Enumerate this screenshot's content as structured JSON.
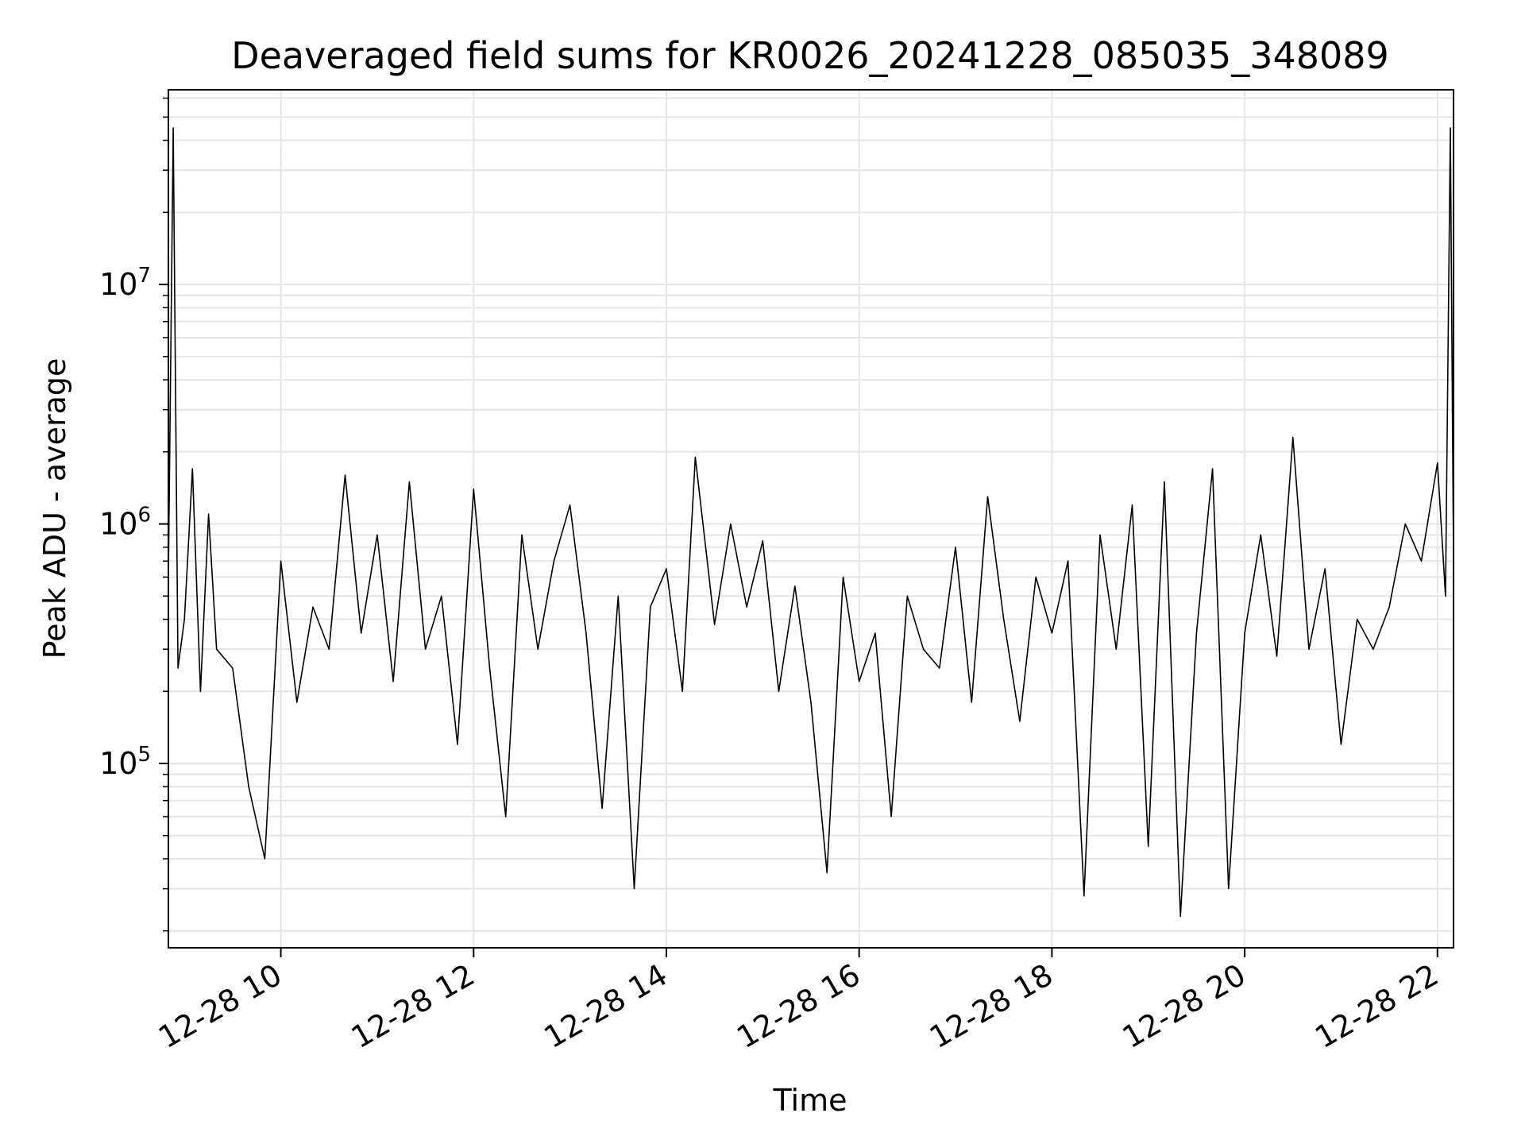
{
  "chart_data": {
    "type": "line",
    "title": "Deaveraged field sums for KR0026_20241228_085035_348089",
    "xlabel": "Time",
    "ylabel": "Peak ADU - average",
    "y_scale": "log",
    "ylim": [
      17000,
      65000000
    ],
    "xlim": [
      "2024-12-28 08:50",
      "2024-12-28 22:10"
    ],
    "grid": true,
    "x_ticks": [
      {
        "value": "2024-12-28 10:00",
        "label": "12-28 10"
      },
      {
        "value": "2024-12-28 12:00",
        "label": "12-28 12"
      },
      {
        "value": "2024-12-28 14:00",
        "label": "12-28 14"
      },
      {
        "value": "2024-12-28 16:00",
        "label": "12-28 16"
      },
      {
        "value": "2024-12-28 18:00",
        "label": "12-28 18"
      },
      {
        "value": "2024-12-28 20:00",
        "label": "12-28 20"
      },
      {
        "value": "2024-12-28 22:00",
        "label": "12-28 22"
      }
    ],
    "y_ticks": [
      {
        "value": 100000,
        "base": "10",
        "exp": "5"
      },
      {
        "value": 1000000,
        "base": "10",
        "exp": "6"
      },
      {
        "value": 10000000,
        "base": "10",
        "exp": "7"
      }
    ],
    "line_color": "#000000",
    "grid_color": "#e6e6e6",
    "series": [
      {
        "x": [
          "2024-12-28 08:50",
          "2024-12-28 08:53",
          "2024-12-28 08:56",
          "2024-12-28 09:00",
          "2024-12-28 09:05",
          "2024-12-28 09:10",
          "2024-12-28 09:15",
          "2024-12-28 09:20",
          "2024-12-28 09:30",
          "2024-12-28 09:40",
          "2024-12-28 09:50",
          "2024-12-28 10:00",
          "2024-12-28 10:10",
          "2024-12-28 10:20",
          "2024-12-28 10:30",
          "2024-12-28 10:40",
          "2024-12-28 10:50",
          "2024-12-28 11:00",
          "2024-12-28 11:10",
          "2024-12-28 11:20",
          "2024-12-28 11:30",
          "2024-12-28 11:40",
          "2024-12-28 11:50",
          "2024-12-28 12:00",
          "2024-12-28 12:10",
          "2024-12-28 12:20",
          "2024-12-28 12:30",
          "2024-12-28 12:40",
          "2024-12-28 12:50",
          "2024-12-28 13:00",
          "2024-12-28 13:10",
          "2024-12-28 13:20",
          "2024-12-28 13:30",
          "2024-12-28 13:40",
          "2024-12-28 13:50",
          "2024-12-28 14:00",
          "2024-12-28 14:10",
          "2024-12-28 14:18",
          "2024-12-28 14:30",
          "2024-12-28 14:40",
          "2024-12-28 14:50",
          "2024-12-28 15:00",
          "2024-12-28 15:10",
          "2024-12-28 15:20",
          "2024-12-28 15:30",
          "2024-12-28 15:40",
          "2024-12-28 15:50",
          "2024-12-28 16:00",
          "2024-12-28 16:10",
          "2024-12-28 16:20",
          "2024-12-28 16:30",
          "2024-12-28 16:40",
          "2024-12-28 16:50",
          "2024-12-28 17:00",
          "2024-12-28 17:10",
          "2024-12-28 17:20",
          "2024-12-28 17:30",
          "2024-12-28 17:40",
          "2024-12-28 17:50",
          "2024-12-28 18:00",
          "2024-12-28 18:10",
          "2024-12-28 18:20",
          "2024-12-28 18:30",
          "2024-12-28 18:40",
          "2024-12-28 18:50",
          "2024-12-28 19:00",
          "2024-12-28 19:10",
          "2024-12-28 19:20",
          "2024-12-28 19:30",
          "2024-12-28 19:40",
          "2024-12-28 19:50",
          "2024-12-28 20:00",
          "2024-12-28 20:10",
          "2024-12-28 20:20",
          "2024-12-28 20:30",
          "2024-12-28 20:40",
          "2024-12-28 20:50",
          "2024-12-28 21:00",
          "2024-12-28 21:10",
          "2024-12-28 21:20",
          "2024-12-28 21:30",
          "2024-12-28 21:40",
          "2024-12-28 21:50",
          "2024-12-28 22:00",
          "2024-12-28 22:05",
          "2024-12-28 22:08",
          "2024-12-28 22:10"
        ],
        "y": [
          600000,
          45000000,
          250000,
          400000,
          1700000,
          200000,
          1100000,
          300000,
          250000,
          80000,
          40000,
          700000,
          180000,
          450000,
          300000,
          1600000,
          350000,
          900000,
          220000,
          1500000,
          300000,
          500000,
          120000,
          1400000,
          250000,
          60000,
          900000,
          300000,
          700000,
          1200000,
          350000,
          65000,
          500000,
          30000,
          450000,
          650000,
          200000,
          1900000,
          380000,
          1000000,
          450000,
          850000,
          200000,
          550000,
          180000,
          35000,
          600000,
          220000,
          350000,
          60000,
          500000,
          300000,
          250000,
          800000,
          180000,
          1300000,
          400000,
          150000,
          600000,
          350000,
          700000,
          28000,
          900000,
          300000,
          1200000,
          45000,
          1500000,
          23000,
          350000,
          1700000,
          30000,
          350000,
          900000,
          280000,
          2300000,
          300000,
          650000,
          120000,
          400000,
          300000,
          450000,
          1000000,
          700000,
          1800000,
          500000,
          45000000,
          700000
        ]
      }
    ]
  }
}
